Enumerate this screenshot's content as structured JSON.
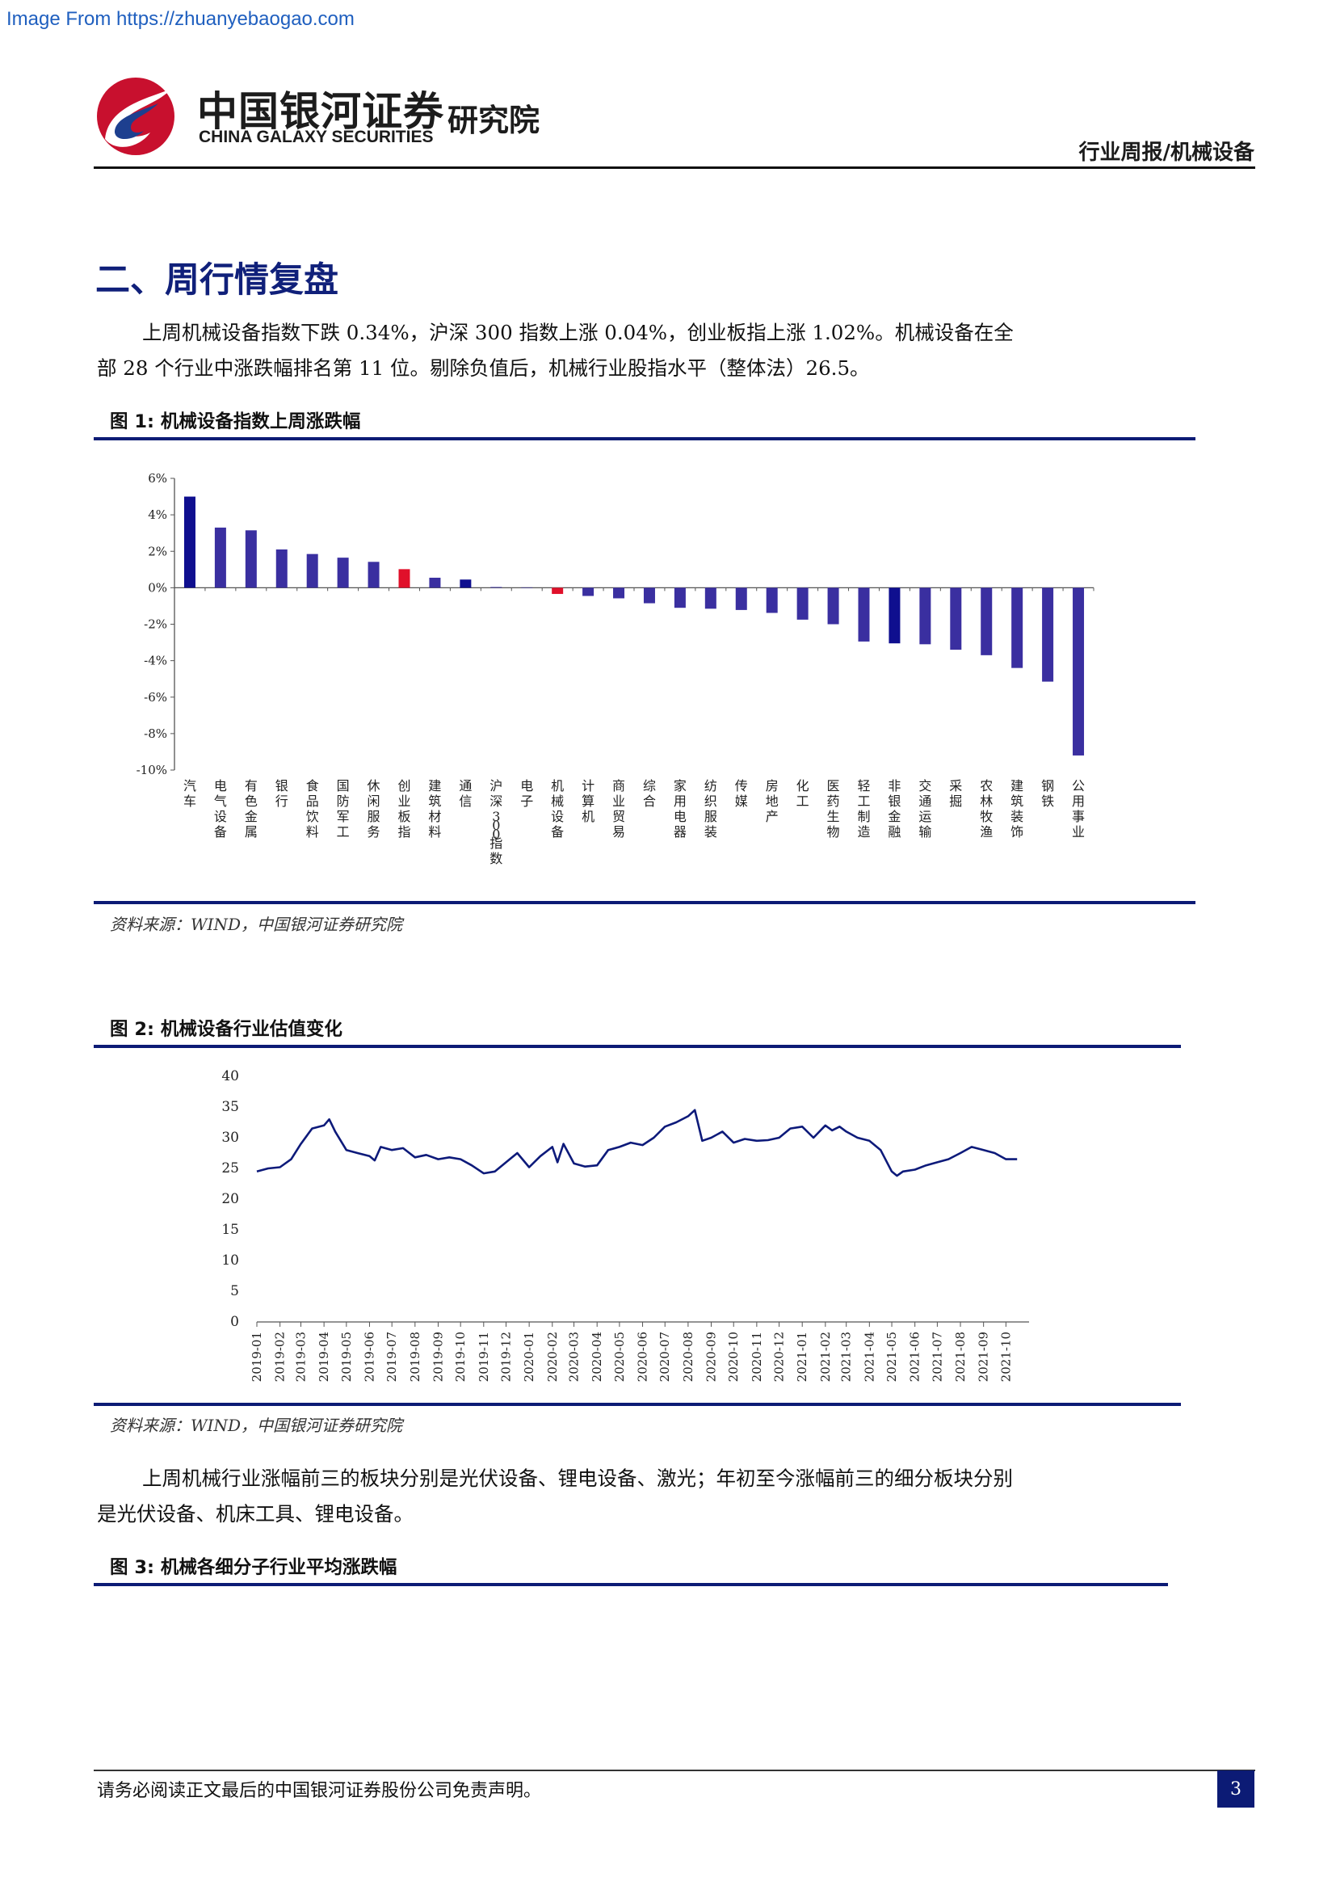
{
  "header": {
    "watermark": "Image From https://zhuanyebaogao.com",
    "logo_cn": "中国银河证券",
    "logo_en": "CHINA GALAXY SECURITIES",
    "institute": "研究院",
    "report_type": "行业周报/机械设备"
  },
  "section_title": "二、周行情复盘",
  "paragraph_1": "上周机械设备指数下跌 0.34%，沪深 300 指数上涨 0.04%，创业板指上涨 1.02%。机械设备在全部 28 个行业中涨跌幅排名第 11 位。剔除负值后，机械行业股指水平（整体法）26.5。",
  "figure_1": {
    "title": "图 1:  机械设备指数上周涨跌幅",
    "source": "资料来源：WIND，中国银河证券研究院"
  },
  "figure_2": {
    "title": "图 2:  机械设备行业估值变化",
    "source": "资料来源：WIND，中国银河证券研究院"
  },
  "paragraph_2": "上周机械行业涨幅前三的板块分别是光伏设备、锂电设备、激光；年初至今涨幅前三的细分板块分别是光伏设备、机床工具、锂电设备。",
  "figure_3": {
    "title": "图 3:  机械各细分子行业平均涨跌幅"
  },
  "footer": {
    "disclaimer": "请务必阅读正文最后的中国银河证券股份公司免责声明。",
    "page_number": "3"
  },
  "colors": {
    "bar_default": "#3a2fa0",
    "bar_emphasis": "#0f0f8f",
    "bar_highlight": "#e0102a",
    "line": "#0d1a7a",
    "rule": "#0c1b75"
  },
  "chart_data": [
    {
      "type": "bar",
      "categories": [
        "汽车",
        "电气设备",
        "有色金属",
        "银行",
        "食品饮料",
        "国防军工",
        "休闲服务",
        "创业板指",
        "建筑材料",
        "通信",
        "沪深300指数",
        "电子",
        "机械设备",
        "计算机",
        "商业贸易",
        "综合",
        "家用电器",
        "纺织服装",
        "传媒",
        "房地产",
        "化工",
        "医药生物",
        "轻工制造",
        "非银金融",
        "交通运输",
        "采掘",
        "农林牧渔",
        "建筑装饰",
        "钢铁",
        "公用事业"
      ],
      "values": [
        5.0,
        3.3,
        3.15,
        2.1,
        1.85,
        1.65,
        1.42,
        1.02,
        0.55,
        0.45,
        0.04,
        0.02,
        -0.34,
        -0.45,
        -0.58,
        -0.85,
        -1.1,
        -1.15,
        -1.22,
        -1.38,
        -1.75,
        -2.0,
        -2.95,
        -3.05,
        -3.1,
        -3.4,
        -3.7,
        -4.4,
        -5.15,
        -9.2
      ],
      "bar_style": [
        "emphasis",
        "default",
        "default",
        "default",
        "default",
        "default",
        "default",
        "highlight",
        "default",
        "emphasis",
        "default",
        "default",
        "highlight",
        "default",
        "default",
        "default",
        "default",
        "default",
        "default",
        "default",
        "default",
        "default",
        "default",
        "emphasis",
        "default",
        "default",
        "default",
        "default",
        "default",
        "default"
      ],
      "y_tick_labels": [
        "6%",
        "4%",
        "2%",
        "0%",
        "-2%",
        "-4%",
        "-6%",
        "-8%",
        "-10%"
      ],
      "ylim": [
        -10,
        6
      ],
      "y_ticks": [
        6,
        4,
        2,
        0,
        -2,
        -4,
        -6,
        -8,
        -10
      ],
      "grid": false
    },
    {
      "type": "line",
      "x_tick_labels": [
        "2019-01",
        "2019-02",
        "2019-03",
        "2019-04",
        "2019-05",
        "2019-06",
        "2019-07",
        "2019-08",
        "2019-09",
        "2019-10",
        "2019-11",
        "2019-12",
        "2020-01",
        "2020-02",
        "2020-03",
        "2020-04",
        "2020-05",
        "2020-06",
        "2020-07",
        "2020-08",
        "2020-09",
        "2020-10",
        "2020-11",
        "2020-12",
        "2021-01",
        "2021-02",
        "2021-03",
        "2021-04",
        "2021-05",
        "2021-06",
        "2021-07",
        "2021-08",
        "2021-09",
        "2021-10"
      ],
      "x": [
        "2019-01-01",
        "2019-01-16",
        "2019-02-01",
        "2019-02-16",
        "2019-03-01",
        "2019-03-16",
        "2019-04-01",
        "2019-04-08",
        "2019-04-16",
        "2019-05-01",
        "2019-05-16",
        "2019-06-01",
        "2019-06-08",
        "2019-06-16",
        "2019-07-01",
        "2019-07-16",
        "2019-08-01",
        "2019-08-16",
        "2019-09-01",
        "2019-09-16",
        "2019-10-01",
        "2019-10-16",
        "2019-11-01",
        "2019-11-16",
        "2019-12-01",
        "2019-12-16",
        "2020-01-01",
        "2020-01-16",
        "2020-02-01",
        "2020-02-08",
        "2020-02-16",
        "2020-03-01",
        "2020-03-16",
        "2020-04-01",
        "2020-04-16",
        "2020-05-01",
        "2020-05-16",
        "2020-06-01",
        "2020-06-16",
        "2020-07-01",
        "2020-07-16",
        "2020-08-01",
        "2020-08-10",
        "2020-08-20",
        "2020-09-01",
        "2020-09-16",
        "2020-10-01",
        "2020-10-16",
        "2020-11-01",
        "2020-11-16",
        "2020-12-01",
        "2020-12-16",
        "2021-01-01",
        "2021-01-16",
        "2021-02-01",
        "2021-02-10",
        "2021-02-20",
        "2021-03-01",
        "2021-03-16",
        "2021-04-01",
        "2021-04-16",
        "2021-05-01",
        "2021-05-08",
        "2021-05-16",
        "2021-06-01",
        "2021-06-16",
        "2021-07-01",
        "2021-07-16",
        "2021-08-01",
        "2021-08-16",
        "2021-09-01",
        "2021-09-16",
        "2021-10-01",
        "2021-10-16"
      ],
      "values": [
        24.5,
        25.0,
        25.2,
        26.5,
        29.0,
        31.5,
        32.0,
        33.0,
        31.0,
        28.0,
        27.5,
        27.0,
        26.3,
        28.5,
        28.0,
        28.3,
        26.8,
        27.2,
        26.5,
        26.8,
        26.5,
        25.5,
        24.2,
        24.5,
        26.0,
        27.5,
        25.2,
        27.0,
        28.5,
        26.0,
        29.0,
        25.8,
        25.3,
        25.5,
        28.0,
        28.5,
        29.2,
        28.8,
        30.0,
        31.8,
        32.5,
        33.5,
        34.5,
        29.5,
        30.0,
        31.0,
        29.2,
        29.8,
        29.5,
        29.6,
        30.0,
        31.5,
        31.8,
        30.0,
        32.0,
        31.2,
        31.8,
        31.0,
        30.0,
        29.5,
        28.0,
        24.5,
        23.8,
        24.5,
        24.8,
        25.5,
        26.0,
        26.5,
        27.5,
        28.5,
        28.0,
        27.5,
        26.5,
        26.5
      ],
      "ylim": [
        0,
        40
      ],
      "y_ticks": [
        0,
        5,
        10,
        15,
        20,
        25,
        30,
        35,
        40
      ],
      "grid": false
    }
  ]
}
